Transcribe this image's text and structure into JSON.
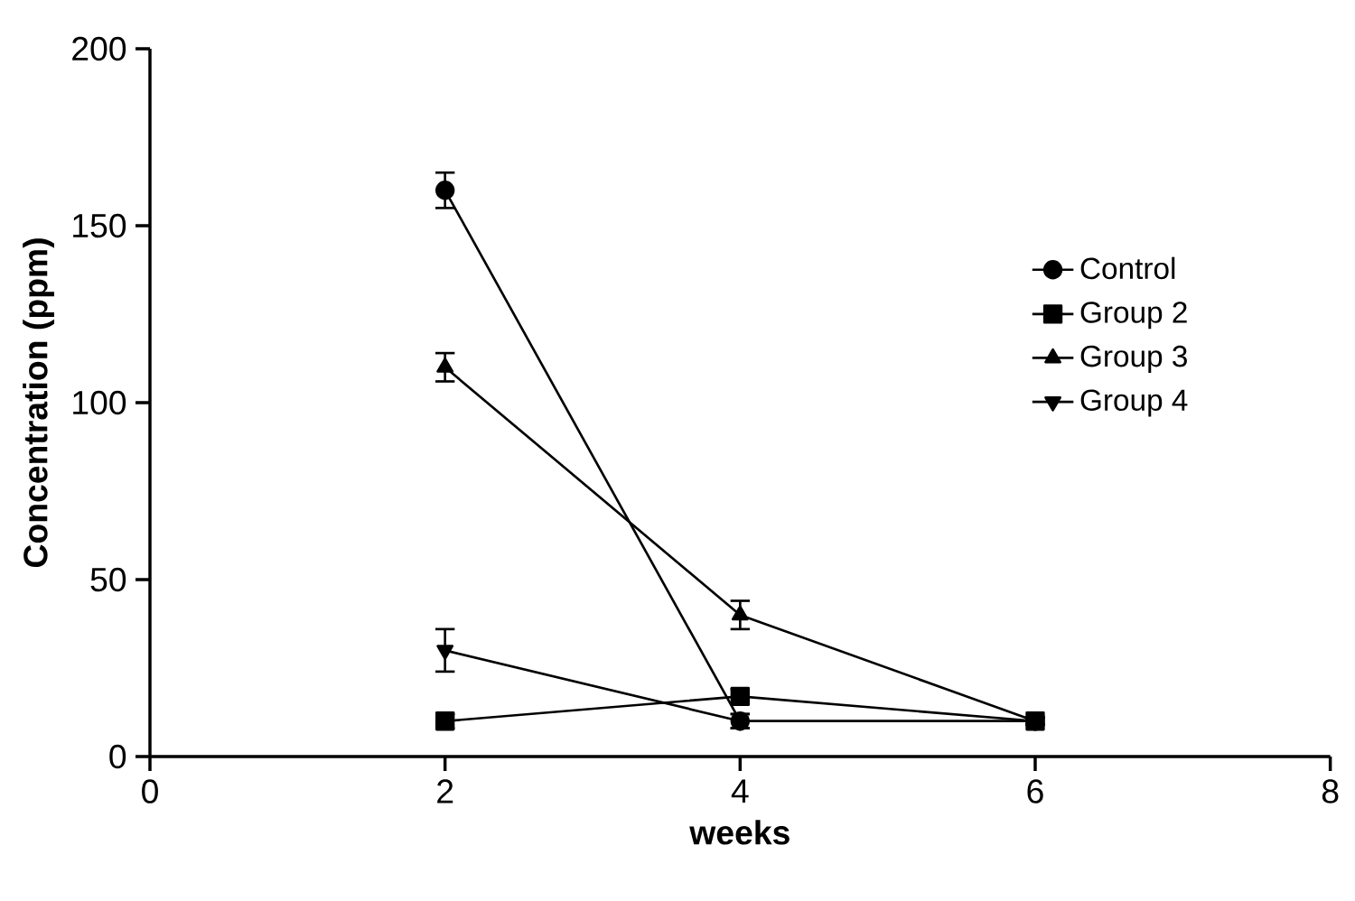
{
  "chart_data": {
    "type": "line",
    "xlabel": "weeks",
    "ylabel": "Concentration (ppm)",
    "x": [
      2,
      4,
      6
    ],
    "series": [
      {
        "name": "Control",
        "color": "#000000",
        "marker": "circle",
        "values": [
          160,
          10,
          10
        ],
        "errors": [
          5,
          2,
          1
        ]
      },
      {
        "name": "Group 2",
        "color": "#000000",
        "marker": "square",
        "values": [
          10,
          17,
          10
        ],
        "errors": [
          2,
          2,
          1
        ]
      },
      {
        "name": "Group 3",
        "color": "#000000",
        "marker": "triangle",
        "values": [
          110,
          40,
          10
        ],
        "errors": [
          4,
          4,
          1
        ]
      },
      {
        "name": "Group 4",
        "color": "#000000",
        "marker": "triangle-down",
        "values": [
          30,
          10,
          10
        ],
        "errors": [
          6,
          2,
          1
        ]
      }
    ],
    "xlim": [
      0,
      8
    ],
    "xticks": [
      0,
      2,
      4,
      6,
      8
    ],
    "ylim": [
      0,
      200
    ],
    "yticks": [
      0,
      50,
      100,
      150,
      200
    ],
    "legend": "right",
    "grid": false
  }
}
